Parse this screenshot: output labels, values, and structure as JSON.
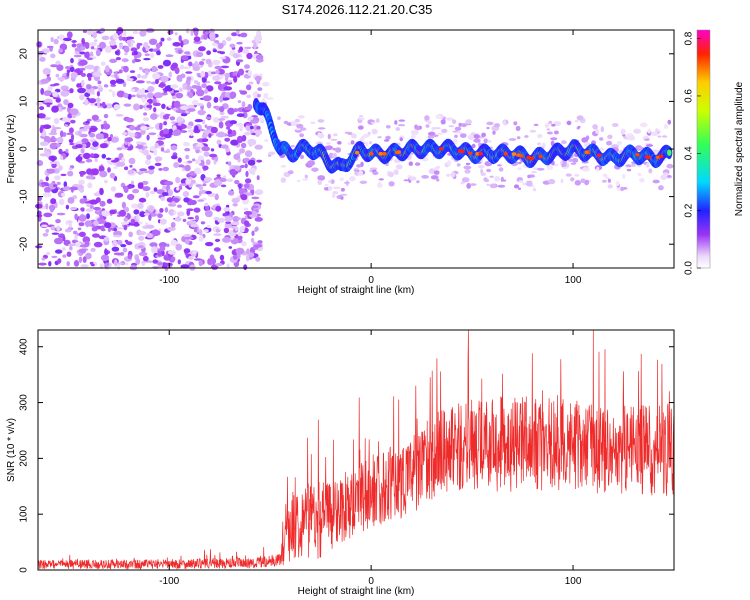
{
  "title": "S174.2026.112.21.20.C35",
  "chart_data": [
    {
      "type": "heatmap",
      "xlabel": "Height of straight line (km)",
      "ylabel": "Frequency (Hz)",
      "xlim": [
        -165,
        150
      ],
      "ylim": [
        -25,
        25
      ],
      "x_ticks": [
        -100,
        0,
        100
      ],
      "y_ticks": [
        -20,
        -10,
        0,
        10,
        20
      ],
      "colorbar": {
        "label": "Normalized spectral amplitude",
        "range": [
          0.0,
          0.83
        ],
        "ticks": [
          0.0,
          0.2,
          0.4,
          0.6,
          0.8
        ],
        "tick_labels": [
          "0.0",
          "0.2",
          "0.4",
          "0.6",
          "0.8"
        ]
      },
      "signal_track": {
        "x": [
          -57,
          -53,
          -49,
          -45,
          -40,
          -35,
          -30,
          -25,
          -20,
          -15,
          -10,
          -5,
          0,
          10,
          20,
          30,
          40,
          50,
          60,
          70,
          80,
          90,
          100,
          110,
          120,
          130,
          140,
          148
        ],
        "freq": [
          10,
          8,
          4,
          0,
          -1,
          0,
          0,
          -1,
          -3,
          -4,
          -2,
          0,
          -1,
          -1,
          0,
          0,
          0,
          -1,
          -1,
          -1,
          -2,
          -1,
          0,
          -1,
          -2,
          -1,
          -2,
          -1
        ],
        "amplitude": [
          0.3,
          0.35,
          0.35,
          0.35,
          0.45,
          0.5,
          0.5,
          0.6,
          0.65,
          0.75,
          0.55,
          0.6,
          0.55,
          0.6,
          0.65,
          0.6,
          0.55,
          0.6,
          0.55,
          0.6,
          0.65,
          0.55,
          0.6,
          0.6,
          0.55,
          0.5,
          0.5,
          0.45
        ]
      },
      "noise_region_x": [
        -165,
        -57
      ]
    },
    {
      "type": "line",
      "xlabel": "Height of straight line (km)",
      "ylabel": "SNR (10 * v/v)",
      "xlim": [
        -165,
        150
      ],
      "ylim": [
        0,
        430
      ],
      "x_ticks": [
        -100,
        0,
        100
      ],
      "y_ticks": [
        0,
        100,
        200,
        300,
        400
      ],
      "series": [
        {
          "name": "SNR",
          "color": "#ee2a2a",
          "envelope": {
            "x": [
              -165,
              -120,
              -60,
              -45,
              -42,
              -35,
              -25,
              -15,
              0,
              20,
              35,
              50,
              70,
              90,
              110,
              130,
              150
            ],
            "base": [
              10,
              10,
              12,
              18,
              70,
              90,
              90,
              110,
              140,
              170,
              215,
              225,
              225,
              225,
              220,
              215,
              215
            ],
            "spread": [
              15,
              15,
              18,
              20,
              110,
              120,
              130,
              110,
              120,
              130,
              140,
              150,
              160,
              150,
              150,
              150,
              150
            ]
          }
        }
      ]
    }
  ]
}
